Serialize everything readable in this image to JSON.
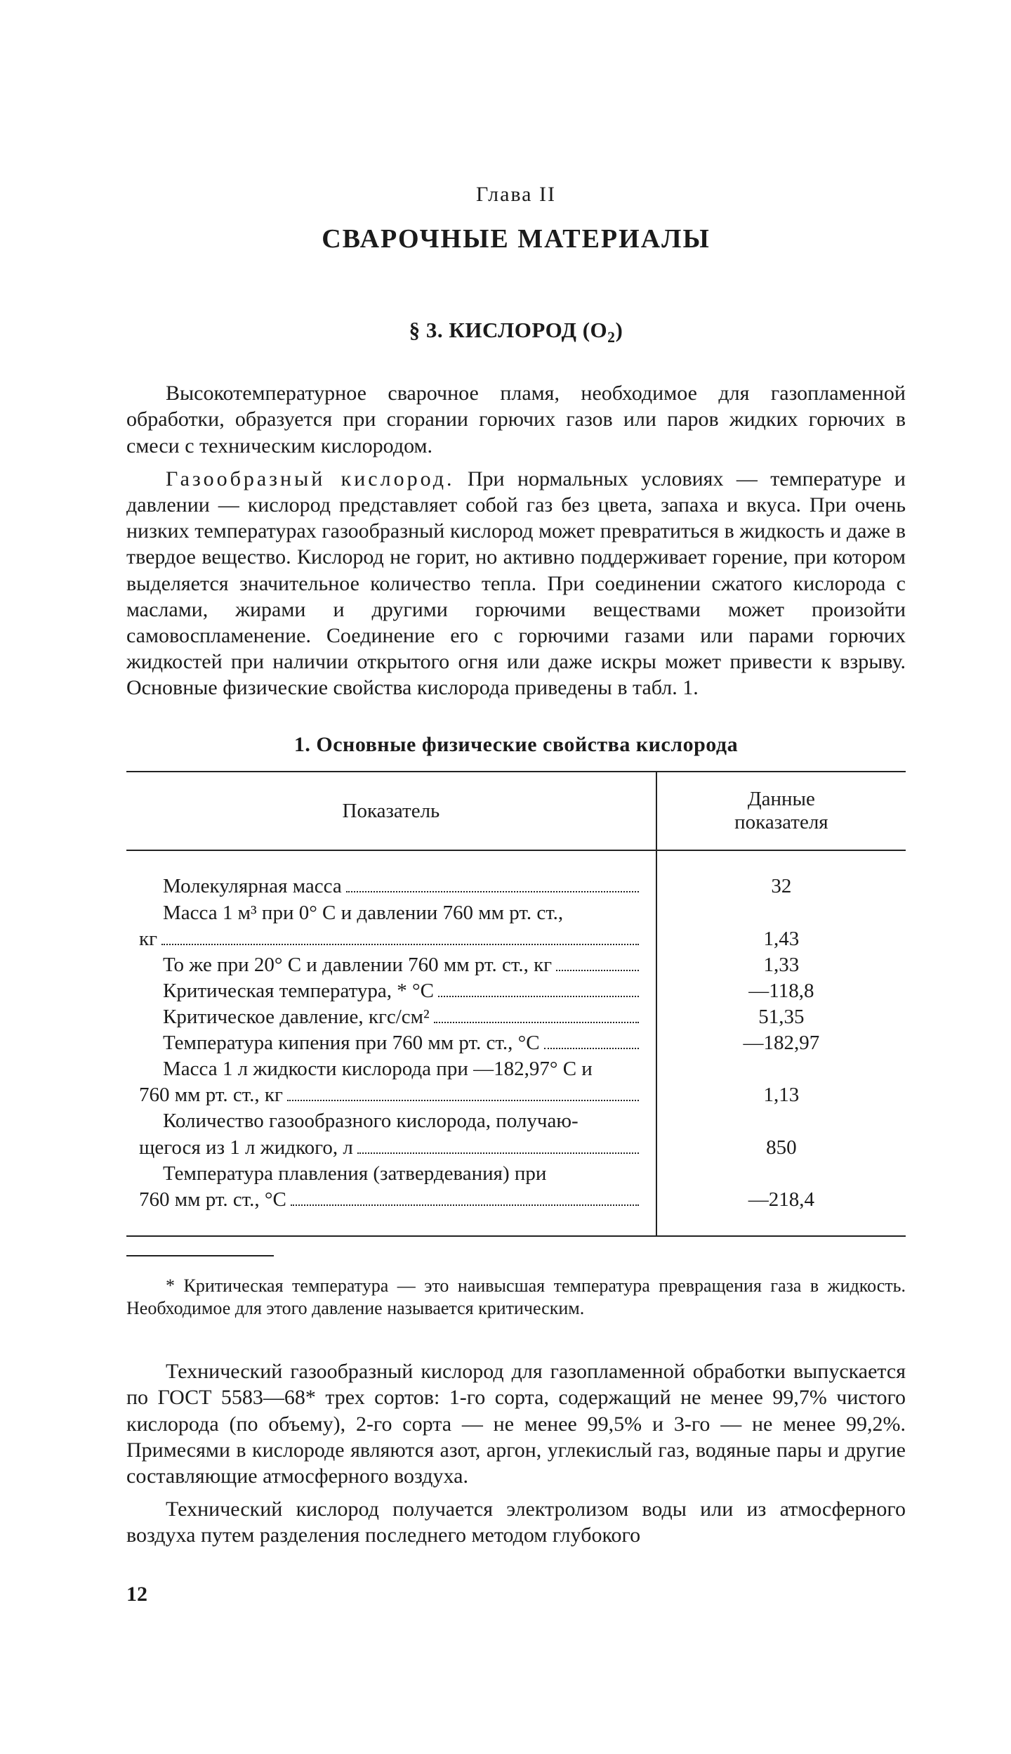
{
  "chapter_label": "Глава II",
  "chapter_title": "СВАРОЧНЫЕ МАТЕРИАЛЫ",
  "section_title_prefix": "§ 3. КИСЛОРОД (O",
  "section_title_sub": "2",
  "section_title_suffix": ")",
  "para1": "Высокотемпературное сварочное пламя, необходимое для газо­пламенной обработки, образуется при сгорании горючих газов или па­ров жидких горючих в смеси с техническим кислородом.",
  "para2_spaced": "Газообразный кислород.",
  "para2_rest": " При нормальных условиях — температуре и давлении — кислород представляет собой газ без цве­та, запаха и вкуса. При очень низких температурах газообразный кис­лород может превратиться в жидкость и даже в твердое вещество. Кислород не горит, но активно поддерживает горение, при котором выделяется значительное количество тепла. При соединении сжатого кислорода с маслами, жирами и другими горючими веществами мо­жет произойти самовоспламенение. Соединение его с горючими газа­ми или парами горючих жидкостей при наличии открытого огня или даже искры может привести к взрыву. Основные физические свойст­ва кислорода приведены в табл. 1.",
  "table": {
    "caption": "1. Основные физические свойства кислорода",
    "head_label": "Показатель",
    "head_value": "Данные\nпоказателя",
    "rows": [
      {
        "lines": [
          "Молекулярная масса"
        ],
        "value": "32",
        "first_indent": true
      },
      {
        "lines": [
          "Масса 1 м³ при 0° С и давлении 760 мм рт. ст.,",
          "кг"
        ],
        "value": "1,43",
        "first_indent": true
      },
      {
        "lines": [
          "То же при 20° С и давлении 760 мм рт. ст., кг"
        ],
        "value": "1,33",
        "first_indent": true
      },
      {
        "lines": [
          "Критическая температура, * °С"
        ],
        "value": "—118,8",
        "first_indent": true
      },
      {
        "lines": [
          "Критическое давление, кгс/см²"
        ],
        "value": "51,35",
        "first_indent": true
      },
      {
        "lines": [
          "Температура кипения при 760 мм рт. ст., °С"
        ],
        "value": "—182,97",
        "first_indent": true
      },
      {
        "lines": [
          "Масса 1 л жидкости кислорода при —182,97° С и",
          "760 мм рт. ст., кг"
        ],
        "value": "1,13",
        "first_indent": true
      },
      {
        "lines": [
          "Количество газообразного кислорода, получаю-",
          "щегося из 1 л жидкого, л"
        ],
        "value": "850",
        "first_indent": true
      },
      {
        "lines": [
          "Температура плавления (затвердевания) при",
          "760 мм рт. ст., °С"
        ],
        "value": "—218,4",
        "first_indent": true
      }
    ]
  },
  "footnote": "* Критическая температура — это наивысшая температура превращения газа в жидкость. Необходимое для этого давление называется критическим.",
  "para3": "Технический газообразный кислород для газопламенной обработ­ки выпускается по ГОСТ 5583—68* трех сортов: 1-го сорта, содержа­щий не менее 99,7% чистого кислорода (по объему), 2-го сорта — не менее 99,5% и 3-го — не менее 99,2%. Примесями в кислороде яв­ляются азот, аргон, углекислый газ, водяные пары и другие состав­ляющие атмосферного воздуха.",
  "para4": "Технический кислород получается электролизом воды или из ат­мосферного воздуха путем разделения последнего методом глубокого",
  "page_number": "12"
}
